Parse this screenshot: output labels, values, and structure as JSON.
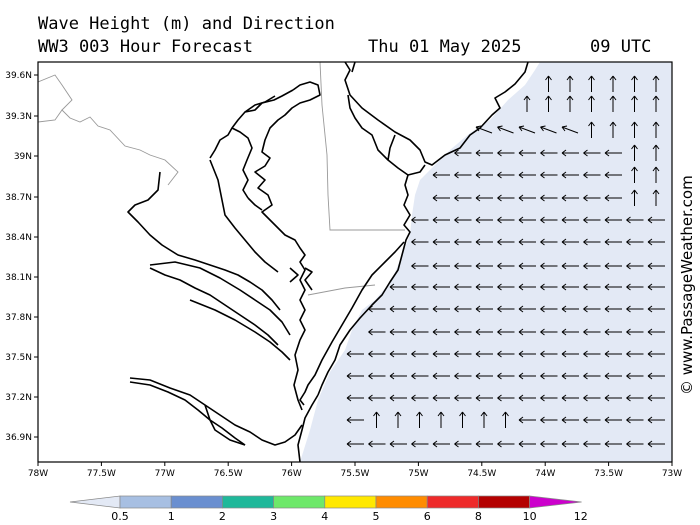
{
  "header": {
    "title_line1": "Wave Height (m) and Direction",
    "title_line2": "WW3 003 Hour Forecast",
    "date": "Thu 01 May 2025",
    "time": "09 UTC"
  },
  "credit": "© www.PassageWeather.com",
  "map": {
    "lat_labels": [
      "39.6N",
      "39.3N",
      "39N",
      "38.7N",
      "38.4N",
      "38.1N",
      "37.8N",
      "37.5N",
      "37.2N",
      "36.9N"
    ],
    "lon_labels": [
      "78W",
      "77.5W",
      "77W",
      "76.5W",
      "76W",
      "75.5W",
      "75W",
      "74.5W",
      "74W",
      "73.5W",
      "73W"
    ],
    "lat_values": [
      39.6,
      39.3,
      39.0,
      38.7,
      38.4,
      38.1,
      37.8,
      37.5,
      37.2,
      36.9
    ],
    "lon_values": [
      -78,
      -77.5,
      -77,
      -76.5,
      -76,
      -75.5,
      -75,
      -74.5,
      -74,
      -73.5,
      -73
    ],
    "wave_height_fill": "#e3e9f5",
    "land_color": "#ffffff",
    "coast_color": "#000000",
    "border_color": "#999999",
    "arrow_direction_north": "up (near NJ coast and southern edge)",
    "arrow_direction_main": "west (most of offshore field)"
  },
  "colorbar": {
    "labels": [
      "0.5",
      "1",
      "2",
      "3",
      "4",
      "5",
      "6",
      "8",
      "10",
      "12"
    ],
    "colors": [
      "#e3e9f5",
      "#a7bfe2",
      "#6a8fd0",
      "#1fb89a",
      "#6ee86a",
      "#ffe800",
      "#ff8c00",
      "#ee2a2a",
      "#b40000",
      "#cc00cc"
    ]
  }
}
